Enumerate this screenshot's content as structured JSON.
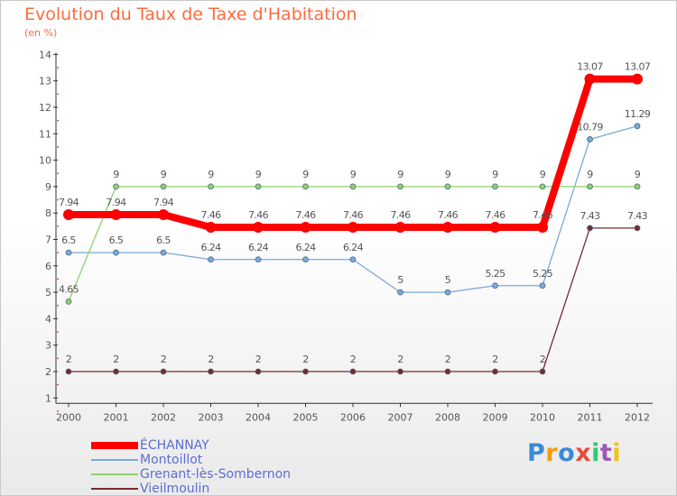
{
  "chart_data": {
    "type": "line",
    "title": "Evolution du Taux de Taxe d'Habitation",
    "subtitle": "(en %)",
    "x": [
      "2000",
      "2001",
      "2002",
      "2003",
      "2004",
      "2005",
      "2006",
      "2007",
      "2008",
      "2009",
      "2010",
      "2011",
      "2012"
    ],
    "ylim": [
      1,
      14
    ],
    "yticks": [
      "1",
      "2",
      "3",
      "4",
      "5",
      "6",
      "7",
      "8",
      "9",
      "10",
      "11",
      "12",
      "13",
      "14"
    ],
    "series": [
      {
        "name": "ÉCHANNAY",
        "color": "#ff0000",
        "values": [
          7.94,
          7.94,
          7.94,
          7.46,
          7.46,
          7.46,
          7.46,
          7.46,
          7.46,
          7.46,
          7.46,
          13.07,
          13.07
        ],
        "labels": [
          "7.94",
          "7.94",
          "7.94",
          "7.46",
          "7.46",
          "7.46",
          "7.46",
          "7.46",
          "7.46",
          "7.46",
          "7.46",
          "13.07",
          "13.07"
        ]
      },
      {
        "name": "Montoillot",
        "color": "#7aa8d8",
        "values": [
          6.5,
          6.5,
          6.5,
          6.24,
          6.24,
          6.24,
          6.24,
          5,
          5,
          5.25,
          5.25,
          10.79,
          11.29
        ],
        "labels": [
          "6.5",
          "6.5",
          "6.5",
          "6.24",
          "6.24",
          "6.24",
          "6.24",
          "5",
          "5",
          "5.25",
          "5.25",
          "10.79",
          "11.29"
        ]
      },
      {
        "name": "Grenant-lès-Sombernon",
        "color": "#8fd16a",
        "values": [
          4.65,
          9,
          9,
          9,
          9,
          9,
          9,
          9,
          9,
          9,
          9,
          9,
          9
        ],
        "labels": [
          "4.65",
          "9",
          "9",
          "9",
          "9",
          "9",
          "9",
          "9",
          "9",
          "9",
          "9",
          "9",
          "9"
        ]
      },
      {
        "name": "Vieilmoulin",
        "color": "#7a2a2a",
        "values": [
          2,
          2,
          2,
          2,
          2,
          2,
          2,
          2,
          2,
          2,
          2,
          7.43,
          7.43
        ],
        "labels": [
          "2",
          "2",
          "2",
          "2",
          "2",
          "2",
          "2",
          "2",
          "2",
          "2",
          "2",
          "7.43",
          "7.43"
        ]
      }
    ]
  },
  "logo": {
    "text": "Proxiti",
    "colors": [
      "#3a8ad6",
      "#f39c12",
      "#3a8ad6",
      "#e74c3c",
      "#2ecc71",
      "#9b59b6",
      "#f1c40f"
    ]
  }
}
